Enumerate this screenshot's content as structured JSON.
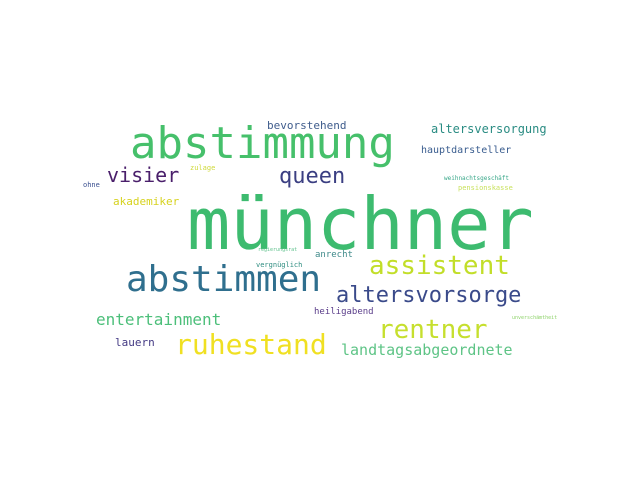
{
  "words": [
    {
      "text": "münchner",
      "color": "#3dbb6f"
    },
    {
      "text": "abstimmung",
      "color": "#46c06b"
    },
    {
      "text": "abstimmen",
      "color": "#2f6f8e"
    },
    {
      "text": "assistent",
      "color": "#c2de29"
    },
    {
      "text": "altersvorsorge",
      "color": "#3a4a8a"
    },
    {
      "text": "rentner",
      "color": "#c6df2e"
    },
    {
      "text": "ruhestand",
      "color": "#f0e022"
    },
    {
      "text": "queen",
      "color": "#3b3f82"
    },
    {
      "text": "visier",
      "color": "#4a1f6b"
    },
    {
      "text": "entertainment",
      "color": "#4cbf7a"
    },
    {
      "text": "landtagsabgeordnete",
      "color": "#5ec486"
    },
    {
      "text": "altersversorgung",
      "color": "#2a8c83"
    },
    {
      "text": "akademiker",
      "color": "#d6d21e"
    },
    {
      "text": "bevorstehend",
      "color": "#3f5c8c"
    },
    {
      "text": "hauptdarsteller",
      "color": "#3a5d8f"
    },
    {
      "text": "lauern",
      "color": "#443a84"
    },
    {
      "text": "heiligabend",
      "color": "#5a3d8a"
    },
    {
      "text": "anrecht",
      "color": "#3f8a8a"
    },
    {
      "text": "vergnüglich",
      "color": "#2e8d80"
    },
    {
      "text": "regierungsrat",
      "color": "#5fc18c"
    },
    {
      "text": "zulage",
      "color": "#cfd93a"
    },
    {
      "text": "weihnachtsgeschäft",
      "color": "#3aa88a"
    },
    {
      "text": "pensionskasse",
      "color": "#c9e25e"
    },
    {
      "text": "unverschämtheit",
      "color": "#8fd36b"
    },
    {
      "text": "ohne",
      "color": "#3a4f8f"
    }
  ]
}
